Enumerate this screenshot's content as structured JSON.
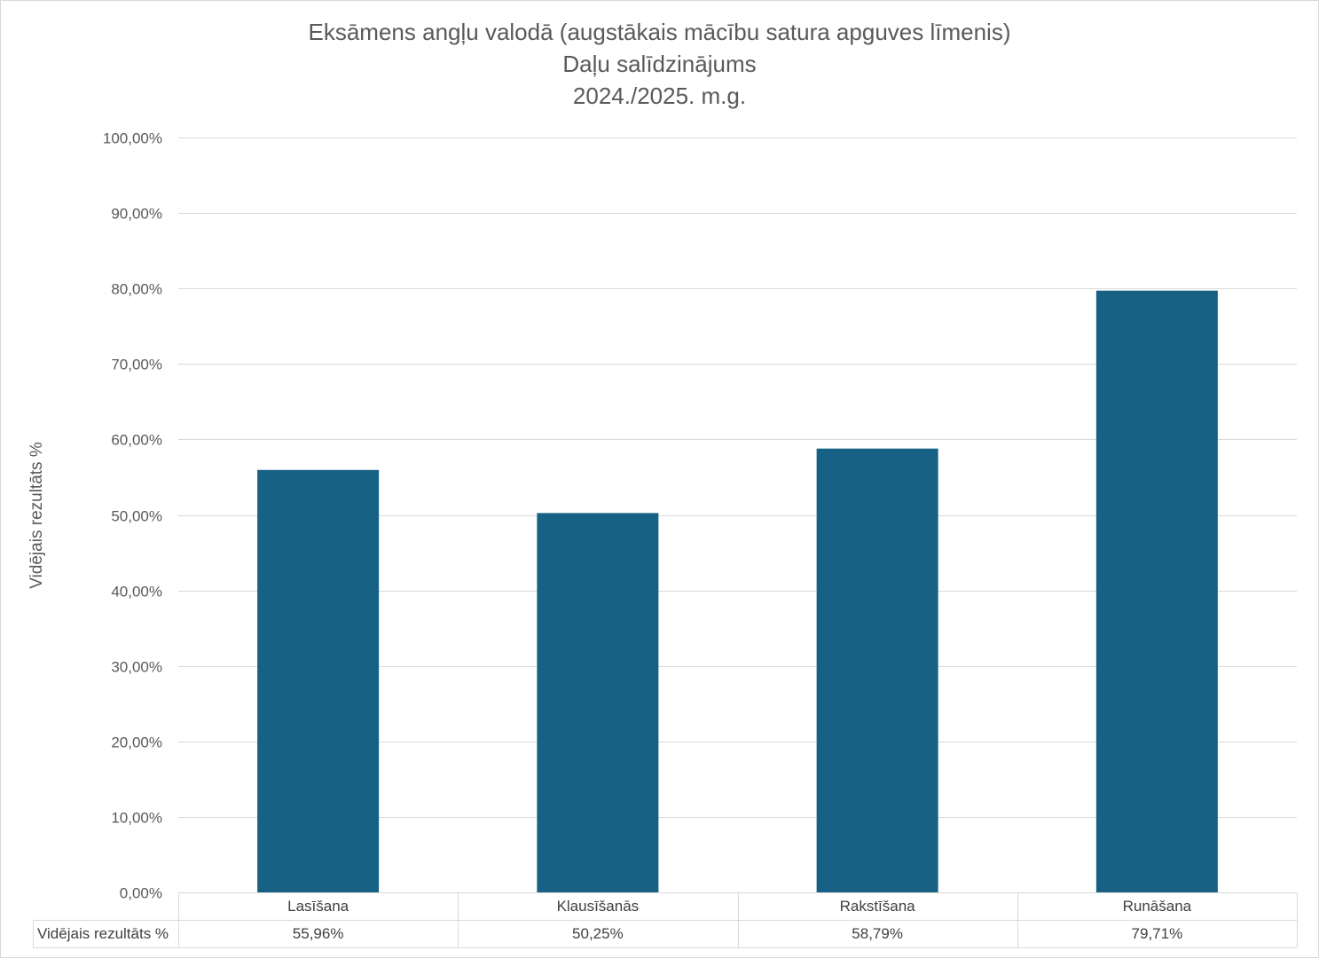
{
  "chart_data": {
    "type": "bar",
    "title_lines": [
      "Eksāmens angļu valodā (augstākais mācību satura apguves līmenis)",
      "Daļu salīdzinājums",
      "2024./2025. m.g."
    ],
    "ylabel": "Vidējais rezultāts %",
    "categories": [
      "Lasīšana",
      "Klausīšanās",
      "Rakstīšana",
      "Runāšana"
    ],
    "series": [
      {
        "name": "Vidējais rezultāts %",
        "values": [
          55.96,
          50.25,
          58.79,
          79.71
        ],
        "value_labels": [
          "55,96%",
          "50,25%",
          "58,79%",
          "79,71%"
        ],
        "color": "#176184"
      }
    ],
    "ylim": [
      0,
      100
    ],
    "yticks": [
      0,
      10,
      20,
      30,
      40,
      50,
      60,
      70,
      80,
      90,
      100
    ],
    "ytick_labels": [
      "0,00%",
      "10,00%",
      "20,00%",
      "30,00%",
      "40,00%",
      "50,00%",
      "60,00%",
      "70,00%",
      "80,00%",
      "90,00%",
      "100,00%"
    ],
    "grid": true,
    "data_table": true,
    "gridline_color": "#d9d9d9",
    "text_color": "#595959"
  }
}
